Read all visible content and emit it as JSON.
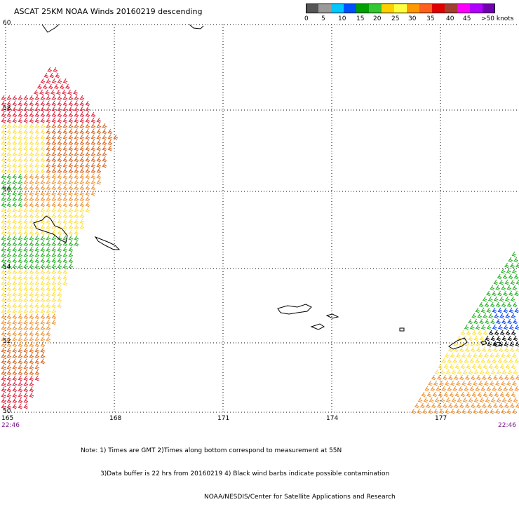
{
  "title": "ASCAT 25KM NOAA Winds 20160219 descending",
  "scale": {
    "colors": [
      "#555555",
      "#9a9a9a",
      "#00c8ff",
      "#0050ff",
      "#00a000",
      "#33c833",
      "#ffd000",
      "#ffff40",
      "#ff9900",
      "#ff6020",
      "#e00000",
      "#a04030",
      "#ff00ff",
      "#b000ff",
      "#7000b0"
    ],
    "labels": [
      "0",
      "5",
      "10",
      "15",
      "20",
      "25",
      "30",
      "35",
      "40",
      "45",
      ">50 knots"
    ]
  },
  "axes": {
    "lat_labels": [
      "60",
      "58",
      "56",
      "54",
      "52",
      "50"
    ],
    "lon_labels": [
      "165",
      "168",
      "171",
      "174",
      "177"
    ]
  },
  "times": {
    "left": "22:46",
    "right": "22:46"
  },
  "notes": [
    "Note: 1) Times are GMT 2)Times along bottom correspond to measurement at 55N",
    "3)Data buffer is 22 hrs from 20160219 4) Black wind barbs indicate possible contamination",
    "NOAA/NESDIS/Center for Satellite Applications and Research"
  ],
  "wind_colors": {
    "red": "#e0203a",
    "dark_orange": "#d86018",
    "orange": "#f09030",
    "yellow": "#ffe040",
    "green": "#22b022",
    "blue": "#0040ff",
    "black": "#000000"
  }
}
